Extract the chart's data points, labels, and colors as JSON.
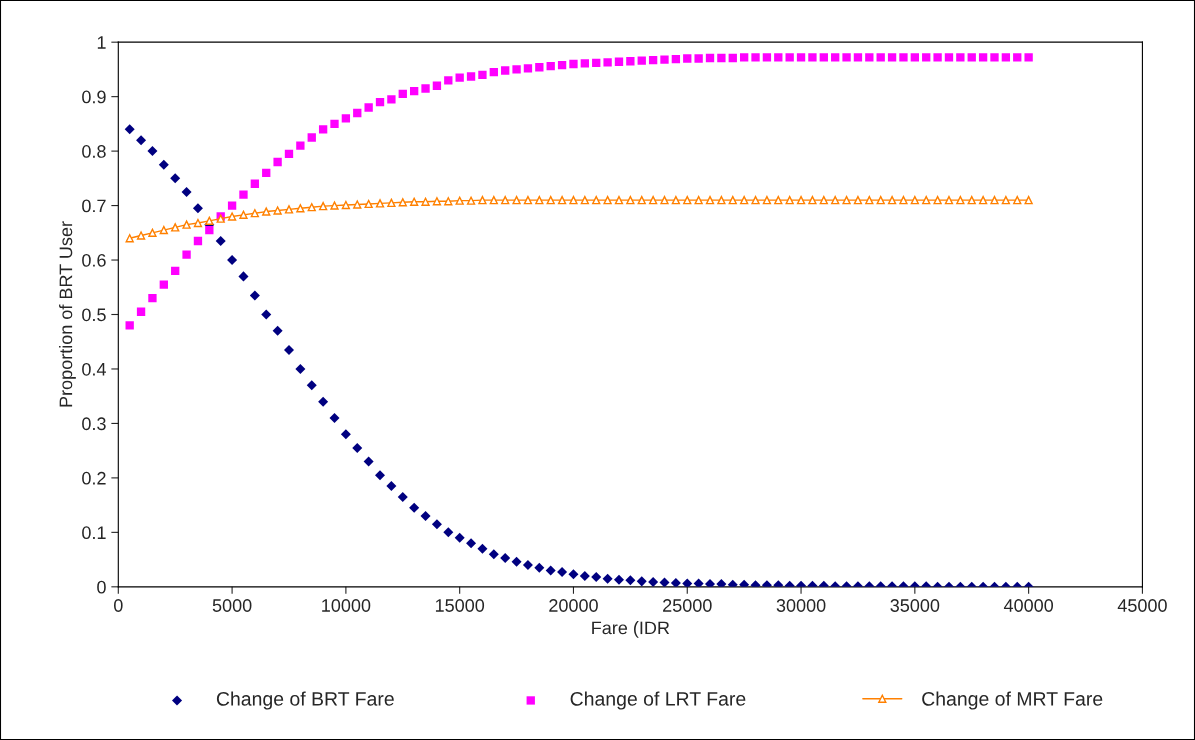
{
  "chart_data": {
    "type": "scatter",
    "xlabel": "Fare (IDR",
    "ylabel": "Proportion of BRT User",
    "x": [
      500,
      1000,
      1500,
      2000,
      2500,
      3000,
      3500,
      4000,
      4500,
      5000,
      5500,
      6000,
      6500,
      7000,
      7500,
      8000,
      8500,
      9000,
      9500,
      10000,
      10500,
      11000,
      11500,
      12000,
      12500,
      13000,
      13500,
      14000,
      14500,
      15000,
      15500,
      16000,
      16500,
      17000,
      17500,
      18000,
      18500,
      19000,
      19500,
      20000,
      20500,
      21000,
      21500,
      22000,
      22500,
      23000,
      23500,
      24000,
      24500,
      25000,
      25500,
      26000,
      26500,
      27000,
      27500,
      28000,
      28500,
      29000,
      29500,
      30000,
      30500,
      31000,
      31500,
      32000,
      32500,
      33000,
      33500,
      34000,
      34500,
      35000,
      35500,
      36000,
      36500,
      37000,
      37500,
      38000,
      38500,
      39000,
      39500,
      40000
    ],
    "series": [
      {
        "name": "Change of BRT Fare",
        "marker": "diamond",
        "color": "#000080",
        "values": [
          0.84,
          0.82,
          0.8,
          0.775,
          0.75,
          0.725,
          0.695,
          0.665,
          0.635,
          0.6,
          0.57,
          0.535,
          0.5,
          0.47,
          0.435,
          0.4,
          0.37,
          0.34,
          0.31,
          0.28,
          0.255,
          0.23,
          0.205,
          0.185,
          0.165,
          0.145,
          0.13,
          0.115,
          0.1,
          0.09,
          0.08,
          0.07,
          0.06,
          0.053,
          0.046,
          0.04,
          0.035,
          0.03,
          0.027,
          0.023,
          0.02,
          0.018,
          0.015,
          0.013,
          0.012,
          0.01,
          0.009,
          0.008,
          0.007,
          0.006,
          0.006,
          0.005,
          0.005,
          0.004,
          0.004,
          0.003,
          0.003,
          0.003,
          0.002,
          0.002,
          0.002,
          0.002,
          0.001,
          0.001,
          0.001,
          0.001,
          0.001,
          0.001,
          0.001,
          0.001,
          0.001,
          0,
          0,
          0,
          0,
          0,
          0,
          0,
          0,
          0
        ]
      },
      {
        "name": "Change of LRT Fare",
        "marker": "square",
        "color": "#ff00ff",
        "values": [
          0.48,
          0.505,
          0.53,
          0.555,
          0.58,
          0.61,
          0.635,
          0.655,
          0.68,
          0.7,
          0.72,
          0.74,
          0.76,
          0.78,
          0.795,
          0.81,
          0.825,
          0.84,
          0.85,
          0.86,
          0.87,
          0.88,
          0.89,
          0.895,
          0.905,
          0.91,
          0.915,
          0.92,
          0.93,
          0.935,
          0.937,
          0.94,
          0.945,
          0.948,
          0.95,
          0.952,
          0.954,
          0.956,
          0.958,
          0.96,
          0.961,
          0.962,
          0.963,
          0.964,
          0.965,
          0.966,
          0.967,
          0.968,
          0.969,
          0.97,
          0.97,
          0.971,
          0.971,
          0.971,
          0.972,
          0.972,
          0.972,
          0.972,
          0.972,
          0.972,
          0.972,
          0.972,
          0.972,
          0.972,
          0.972,
          0.972,
          0.972,
          0.972,
          0.972,
          0.972,
          0.972,
          0.972,
          0.972,
          0.972,
          0.972,
          0.972,
          0.972,
          0.972,
          0.972,
          0.972
        ]
      },
      {
        "name": "Change of MRT Fare",
        "type": "line",
        "marker": "triangle",
        "line_style": "solid",
        "color": "#ff8000",
        "values": [
          0.64,
          0.645,
          0.65,
          0.655,
          0.66,
          0.665,
          0.668,
          0.672,
          0.676,
          0.68,
          0.683,
          0.686,
          0.689,
          0.691,
          0.693,
          0.695,
          0.697,
          0.699,
          0.7,
          0.701,
          0.702,
          0.703,
          0.704,
          0.705,
          0.706,
          0.707,
          0.707,
          0.708,
          0.708,
          0.709,
          0.709,
          0.71,
          0.71,
          0.71,
          0.71,
          0.71,
          0.71,
          0.71,
          0.71,
          0.71,
          0.71,
          0.71,
          0.71,
          0.71,
          0.71,
          0.71,
          0.71,
          0.71,
          0.71,
          0.71,
          0.71,
          0.71,
          0.71,
          0.71,
          0.71,
          0.71,
          0.71,
          0.71,
          0.71,
          0.71,
          0.71,
          0.71,
          0.71,
          0.71,
          0.71,
          0.71,
          0.71,
          0.71,
          0.71,
          0.71,
          0.71,
          0.71,
          0.71,
          0.71,
          0.71,
          0.71,
          0.71,
          0.71,
          0.71,
          0.71
        ]
      }
    ],
    "xlim": [
      0,
      45000
    ],
    "xticks": [
      0,
      5000,
      10000,
      15000,
      20000,
      25000,
      30000,
      35000,
      40000,
      45000
    ],
    "ylim": [
      0,
      1
    ],
    "yticks": [
      0,
      0.1,
      0.2,
      0.3,
      0.4,
      0.5,
      0.6,
      0.7,
      0.8,
      0.9,
      1
    ],
    "grid": false,
    "legend": "bottom"
  }
}
